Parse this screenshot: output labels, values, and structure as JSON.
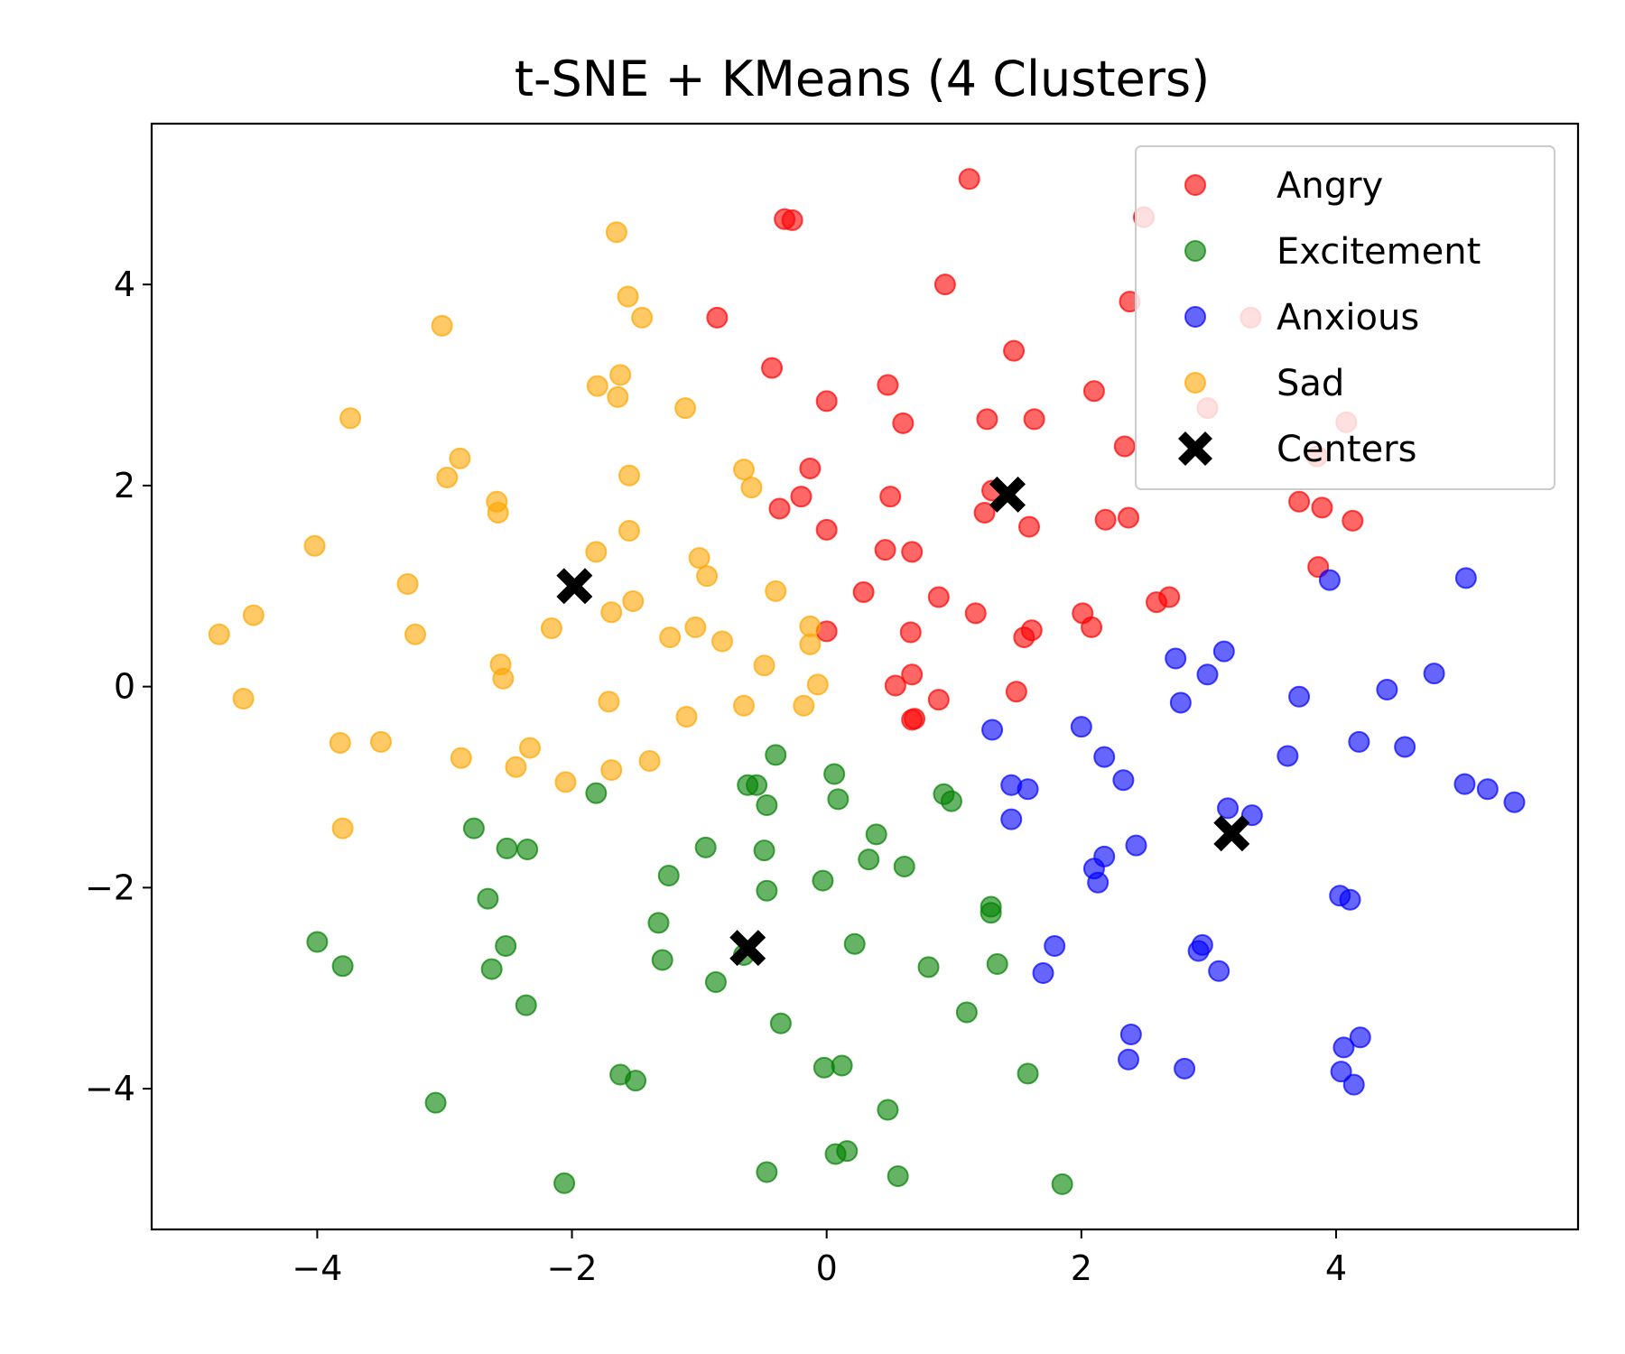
{
  "chart_data": {
    "type": "scatter",
    "title": "t-SNE + KMeans (4 Clusters)",
    "xlabel": "",
    "ylabel": "",
    "xlim": [
      -5.3,
      5.9
    ],
    "ylim": [
      -5.4,
      5.6
    ],
    "x_ticks": [
      -4,
      -2,
      0,
      2,
      4
    ],
    "y_ticks": [
      -4,
      -2,
      0,
      2,
      4
    ],
    "x_tick_labels": [
      "−4",
      "−2",
      "0",
      "2",
      "4"
    ],
    "y_tick_labels": [
      "−4",
      "−2",
      "0",
      "2",
      "4"
    ],
    "grid": false,
    "legend_position": "top-right",
    "series": [
      {
        "name": "Angry",
        "color": "#ff0000",
        "marker": "circle",
        "points": [
          [
            1.12,
            5.05
          ],
          [
            -0.33,
            4.65
          ],
          [
            -0.27,
            4.64
          ],
          [
            2.49,
            4.67
          ],
          [
            0.93,
            4.0
          ],
          [
            -0.86,
            3.67
          ],
          [
            2.38,
            3.83
          ],
          [
            3.33,
            3.67
          ],
          [
            -0.43,
            3.17
          ],
          [
            1.47,
            3.34
          ],
          [
            0.48,
            3.0
          ],
          [
            0.0,
            2.84
          ],
          [
            2.1,
            2.94
          ],
          [
            2.99,
            2.77
          ],
          [
            0.6,
            2.62
          ],
          [
            1.26,
            2.66
          ],
          [
            1.63,
            2.66
          ],
          [
            4.08,
            2.63
          ],
          [
            2.34,
            2.39
          ],
          [
            -0.13,
            2.17
          ],
          [
            3.85,
            2.29
          ],
          [
            1.3,
            1.95
          ],
          [
            -0.2,
            1.89
          ],
          [
            0.5,
            1.89
          ],
          [
            -0.37,
            1.77
          ],
          [
            1.24,
            1.73
          ],
          [
            3.71,
            1.84
          ],
          [
            3.89,
            1.78
          ],
          [
            2.19,
            1.66
          ],
          [
            2.37,
            1.68
          ],
          [
            4.13,
            1.65
          ],
          [
            0.0,
            1.56
          ],
          [
            1.59,
            1.59
          ],
          [
            0.46,
            1.36
          ],
          [
            0.67,
            1.34
          ],
          [
            3.86,
            1.19
          ],
          [
            0.29,
            0.94
          ],
          [
            0.88,
            0.89
          ],
          [
            2.59,
            0.84
          ],
          [
            2.69,
            0.89
          ],
          [
            1.17,
            0.73
          ],
          [
            2.01,
            0.73
          ],
          [
            2.08,
            0.59
          ],
          [
            0.0,
            0.55
          ],
          [
            0.66,
            0.54
          ],
          [
            1.61,
            0.56
          ],
          [
            1.55,
            0.49
          ],
          [
            0.67,
            0.12
          ],
          [
            0.54,
            0.01
          ],
          [
            1.49,
            -0.05
          ],
          [
            0.88,
            -0.13
          ],
          [
            0.67,
            -0.33
          ],
          [
            0.69,
            -0.32
          ]
        ]
      },
      {
        "name": "Excitement",
        "color": "#008000",
        "marker": "circle",
        "points": [
          [
            -0.4,
            -0.68
          ],
          [
            0.06,
            -0.87
          ],
          [
            -0.62,
            -0.98
          ],
          [
            -0.55,
            -0.98
          ],
          [
            -1.81,
            -1.06
          ],
          [
            0.92,
            -1.07
          ],
          [
            0.98,
            -1.14
          ],
          [
            0.09,
            -1.12
          ],
          [
            -0.47,
            -1.18
          ],
          [
            -2.77,
            -1.41
          ],
          [
            0.39,
            -1.47
          ],
          [
            -2.51,
            -1.61
          ],
          [
            -2.35,
            -1.62
          ],
          [
            -0.95,
            -1.6
          ],
          [
            -0.49,
            -1.63
          ],
          [
            0.33,
            -1.72
          ],
          [
            0.61,
            -1.79
          ],
          [
            -1.24,
            -1.88
          ],
          [
            -0.03,
            -1.93
          ],
          [
            -0.47,
            -2.03
          ],
          [
            -2.66,
            -2.11
          ],
          [
            1.29,
            -2.19
          ],
          [
            1.29,
            -2.25
          ],
          [
            -1.32,
            -2.35
          ],
          [
            -4.0,
            -2.54
          ],
          [
            -2.52,
            -2.58
          ],
          [
            0.22,
            -2.56
          ],
          [
            -3.8,
            -2.78
          ],
          [
            -2.63,
            -2.81
          ],
          [
            -1.29,
            -2.72
          ],
          [
            0.8,
            -2.79
          ],
          [
            1.34,
            -2.76
          ],
          [
            -0.65,
            -2.67
          ],
          [
            -0.87,
            -2.94
          ],
          [
            -2.36,
            -3.17
          ],
          [
            1.1,
            -3.24
          ],
          [
            -0.36,
            -3.35
          ],
          [
            -1.62,
            -3.86
          ],
          [
            -1.5,
            -3.92
          ],
          [
            -0.02,
            -3.79
          ],
          [
            0.12,
            -3.77
          ],
          [
            1.58,
            -3.85
          ],
          [
            -3.07,
            -4.14
          ],
          [
            0.48,
            -4.21
          ],
          [
            0.07,
            -4.65
          ],
          [
            0.16,
            -4.62
          ],
          [
            -0.47,
            -4.83
          ],
          [
            0.56,
            -4.87
          ],
          [
            -2.06,
            -4.94
          ],
          [
            1.85,
            -4.95
          ]
        ]
      },
      {
        "name": "Anxious",
        "color": "#0000ff",
        "marker": "circle",
        "points": [
          [
            3.95,
            1.06
          ],
          [
            5.02,
            1.08
          ],
          [
            2.74,
            0.28
          ],
          [
            3.12,
            0.35
          ],
          [
            2.99,
            0.12
          ],
          [
            4.77,
            0.13
          ],
          [
            2.78,
            -0.16
          ],
          [
            3.71,
            -0.1
          ],
          [
            4.4,
            -0.03
          ],
          [
            1.3,
            -0.43
          ],
          [
            2.0,
            -0.4
          ],
          [
            2.18,
            -0.7
          ],
          [
            3.62,
            -0.69
          ],
          [
            4.18,
            -0.55
          ],
          [
            4.54,
            -0.6
          ],
          [
            2.33,
            -0.93
          ],
          [
            1.45,
            -0.98
          ],
          [
            1.58,
            -1.02
          ],
          [
            5.01,
            -0.97
          ],
          [
            5.19,
            -1.02
          ],
          [
            5.4,
            -1.15
          ],
          [
            3.15,
            -1.21
          ],
          [
            3.34,
            -1.28
          ],
          [
            1.45,
            -1.32
          ],
          [
            2.43,
            -1.58
          ],
          [
            2.1,
            -1.81
          ],
          [
            2.18,
            -1.69
          ],
          [
            2.13,
            -1.95
          ],
          [
            4.03,
            -2.08
          ],
          [
            4.11,
            -2.12
          ],
          [
            1.79,
            -2.58
          ],
          [
            2.95,
            -2.57
          ],
          [
            2.92,
            -2.63
          ],
          [
            1.7,
            -2.85
          ],
          [
            3.08,
            -2.83
          ],
          [
            2.39,
            -3.46
          ],
          [
            2.37,
            -3.71
          ],
          [
            2.81,
            -3.8
          ],
          [
            4.19,
            -3.49
          ],
          [
            4.06,
            -3.59
          ],
          [
            4.04,
            -3.83
          ],
          [
            4.14,
            -3.96
          ]
        ]
      },
      {
        "name": "Sad",
        "color": "#ffa500",
        "marker": "circle",
        "points": [
          [
            -1.65,
            4.52
          ],
          [
            -1.56,
            3.88
          ],
          [
            -1.45,
            3.67
          ],
          [
            -3.02,
            3.59
          ],
          [
            -1.62,
            3.1
          ],
          [
            -1.8,
            2.99
          ],
          [
            -1.64,
            2.88
          ],
          [
            -1.11,
            2.77
          ],
          [
            -3.74,
            2.67
          ],
          [
            -2.88,
            2.27
          ],
          [
            -0.65,
            2.16
          ],
          [
            -1.55,
            2.1
          ],
          [
            -2.98,
            2.08
          ],
          [
            -0.59,
            1.98
          ],
          [
            -2.59,
            1.84
          ],
          [
            -2.58,
            1.73
          ],
          [
            -4.02,
            1.4
          ],
          [
            -1.55,
            1.55
          ],
          [
            -1.81,
            1.34
          ],
          [
            -1.0,
            1.28
          ],
          [
            -0.94,
            1.1
          ],
          [
            -3.29,
            1.02
          ],
          [
            -0.4,
            0.95
          ],
          [
            -1.52,
            0.85
          ],
          [
            -1.69,
            0.74
          ],
          [
            -4.5,
            0.71
          ],
          [
            -2.16,
            0.58
          ],
          [
            -1.03,
            0.59
          ],
          [
            -0.13,
            0.6
          ],
          [
            -4.77,
            0.52
          ],
          [
            -3.23,
            0.52
          ],
          [
            -1.23,
            0.49
          ],
          [
            -0.82,
            0.45
          ],
          [
            -0.13,
            0.42
          ],
          [
            -2.56,
            0.22
          ],
          [
            -0.49,
            0.21
          ],
          [
            -2.54,
            0.08
          ],
          [
            -0.07,
            0.02
          ],
          [
            -4.58,
            -0.12
          ],
          [
            -1.71,
            -0.15
          ],
          [
            -0.65,
            -0.19
          ],
          [
            -0.18,
            -0.19
          ],
          [
            -1.1,
            -0.3
          ],
          [
            -3.82,
            -0.56
          ],
          [
            -3.5,
            -0.55
          ],
          [
            -2.33,
            -0.61
          ],
          [
            -2.87,
            -0.71
          ],
          [
            -1.39,
            -0.74
          ],
          [
            -2.44,
            -0.8
          ],
          [
            -1.69,
            -0.83
          ],
          [
            -2.05,
            -0.95
          ],
          [
            -3.8,
            -1.41
          ]
        ]
      }
    ],
    "centers": {
      "name": "Centers",
      "color": "#000000",
      "marker": "X",
      "points": [
        [
          1.42,
          1.91
        ],
        [
          -1.98,
          1.0
        ],
        [
          3.18,
          -1.46
        ],
        [
          -0.62,
          -2.6
        ]
      ]
    },
    "legend": [
      "Angry",
      "Excitement",
      "Anxious",
      "Sad",
      "Centers"
    ]
  }
}
